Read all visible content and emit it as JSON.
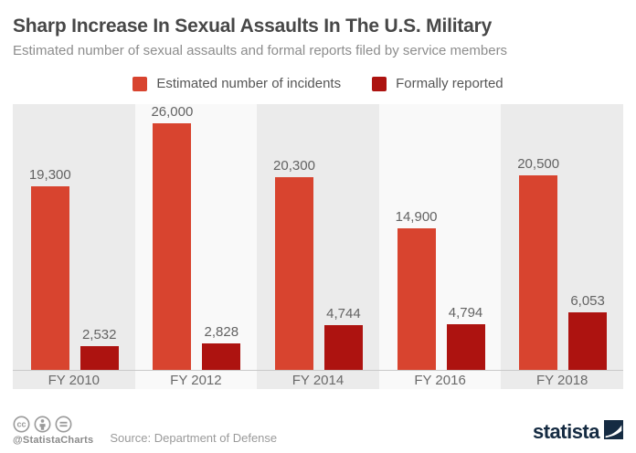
{
  "header": {
    "title": "Sharp Increase In Sexual Assaults In The U.S. Military",
    "subtitle": "Estimated number of sexual assaults and formal reports filed by service members"
  },
  "legend": [
    {
      "label": "Estimated number of incidents",
      "color": "#d8442f"
    },
    {
      "label": "Formally reported",
      "color": "#ad1310"
    }
  ],
  "chart_data": {
    "type": "bar",
    "title": "Sharp Increase In Sexual Assaults In The U.S. Military",
    "subtitle": "Estimated number of sexual assaults and formal reports filed by service members",
    "categories": [
      "FY 2010",
      "FY 2012",
      "FY 2014",
      "FY 2016",
      "FY 2018"
    ],
    "series": [
      {
        "name": "Estimated number of incidents",
        "color": "#d8442f",
        "values": [
          19300,
          26000,
          20300,
          14900,
          20500
        ],
        "labels": [
          "19,300",
          "26,000",
          "20,300",
          "14,900",
          "20,500"
        ]
      },
      {
        "name": "Formally reported",
        "color": "#ad1310",
        "values": [
          2532,
          2828,
          4744,
          4794,
          6053
        ],
        "labels": [
          "2,532",
          "2,828",
          "4,744",
          "4,794",
          "6,053"
        ]
      }
    ],
    "xlabel": "",
    "ylabel": "",
    "ylim": [
      0,
      28000
    ],
    "grid": false,
    "legend_position": "top",
    "column_shading": [
      "shaded",
      "light",
      "shaded",
      "light",
      "shaded"
    ]
  },
  "footer": {
    "cc_icons": [
      "cc-icon",
      "attribution-icon",
      "no-derivatives-icon"
    ],
    "handle": "@StatistaCharts",
    "source": "Source: Department of Defense",
    "brand": "statista"
  },
  "colors": {
    "bar_primary": "#d8442f",
    "bar_secondary": "#ad1310",
    "column_shaded": "#ebebeb",
    "column_light": "#f9f9f9",
    "axis_line": "#c9c9c9",
    "brand_navy": "#152b42"
  }
}
